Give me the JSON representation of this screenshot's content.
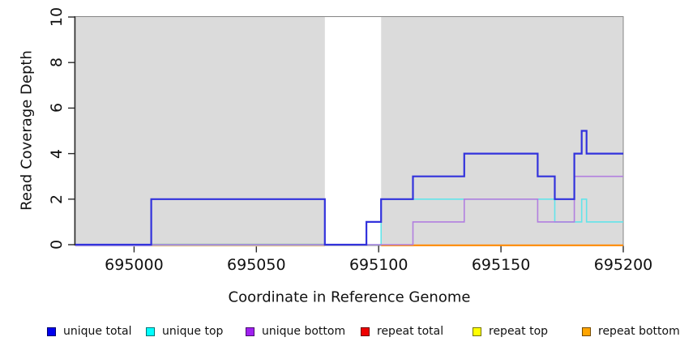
{
  "figure": {
    "xlabel": "Coordinate in Reference Genome",
    "ylabel": "Read Coverage Depth"
  },
  "chart_data": {
    "type": "line",
    "subtype": "step-coverage",
    "title": "",
    "xlabel": "Coordinate in Reference Genome",
    "ylabel": "Read Coverage Depth",
    "xlim": [
      694976,
      695200
    ],
    "ylim": [
      0,
      10
    ],
    "grid": false,
    "region_color": "#DBDBDB",
    "box_color": "#858585",
    "shaded_regions": [
      {
        "from": 694976,
        "to": 695078
      },
      {
        "from": 695101,
        "to": 695200
      }
    ],
    "x_ticks": [
      {
        "value": 695000,
        "label": "695000"
      },
      {
        "value": 695050,
        "label": "695050"
      },
      {
        "value": 695100,
        "label": "695100"
      },
      {
        "value": 695150,
        "label": "695150"
      },
      {
        "value": 695200,
        "label": "695200"
      }
    ],
    "y_ticks": [
      {
        "value": 0,
        "label": "0"
      },
      {
        "value": 2,
        "label": "2"
      },
      {
        "value": 4,
        "label": "4"
      },
      {
        "value": 6,
        "label": "6"
      },
      {
        "value": 8,
        "label": "8"
      },
      {
        "value": 10,
        "label": "10"
      }
    ],
    "series": [
      {
        "name": "repeat total",
        "color": "#DD0000",
        "width": 1.6,
        "draw": false,
        "steps": [
          [
            694976,
            0
          ]
        ]
      },
      {
        "name": "repeat top",
        "color": "#EEEE00",
        "width": 1.6,
        "draw": false,
        "steps": [
          [
            694976,
            0
          ]
        ]
      },
      {
        "name": "repeat bottom",
        "color": "#FF8A05",
        "width": 2.2,
        "draw": false,
        "steps": [
          [
            694976,
            0
          ]
        ]
      },
      {
        "name": "unique top",
        "color": "#63E4EA",
        "width": 1.6,
        "draw": true,
        "steps": [
          [
            694976,
            0
          ],
          [
            695101,
            2
          ],
          [
            695172,
            1
          ],
          [
            695183,
            2
          ],
          [
            695185,
            1
          ]
        ]
      },
      {
        "name": "unique bottom",
        "color": "#B27FDF",
        "width": 1.6,
        "draw": true,
        "steps": [
          [
            694976,
            0
          ],
          [
            695114,
            1
          ],
          [
            695135,
            2
          ],
          [
            695165,
            1
          ],
          [
            695180,
            3
          ]
        ]
      },
      {
        "name": "unique total",
        "color": "#3232DC",
        "width": 2.2,
        "draw": true,
        "steps": [
          [
            694976,
            0
          ],
          [
            695007,
            2
          ],
          [
            695078,
            0
          ],
          [
            695095,
            1
          ],
          [
            695101,
            2
          ],
          [
            695114,
            3
          ],
          [
            695135,
            4
          ],
          [
            695165,
            3
          ],
          [
            695172,
            2
          ],
          [
            695180,
            4
          ],
          [
            695183,
            5
          ],
          [
            695185,
            4
          ]
        ]
      }
    ],
    "overlap_segments": [
      {
        "color": "#C9B4EC",
        "from": 694976,
        "to": 695007,
        "v": 0,
        "dy": 1.7,
        "width": 1.2
      },
      {
        "color": "#E8C89A",
        "from": 695007,
        "to": 695078,
        "v": 0,
        "dy": 1.7,
        "width": 1.2
      },
      {
        "color": "#8FD48F",
        "from": 695007,
        "to": 695078,
        "v": 0,
        "dy": -0.5,
        "width": 1.6
      },
      {
        "color": "#FF8A05",
        "from": 695101,
        "to": 695200,
        "v": 0,
        "dy": 0.8,
        "width": 2.2
      }
    ],
    "legend_position": "bottom",
    "legend": {
      "items": [
        {
          "label": "unique total",
          "color": "#0000EE",
          "x": 58
        },
        {
          "label": "unique top",
          "color": "#00FFFF",
          "x": 180
        },
        {
          "label": "unique bottom",
          "color": "#A020F0",
          "x": 303
        },
        {
          "label": "repeat total",
          "color": "#EE0000",
          "x": 445
        },
        {
          "label": "repeat top",
          "color": "#FFFF00",
          "x": 583
        },
        {
          "label": "repeat bottom",
          "color": "#FFA500",
          "x": 718
        }
      ]
    }
  },
  "layout_note": "coverage depth step plot over reference genome coordinates"
}
